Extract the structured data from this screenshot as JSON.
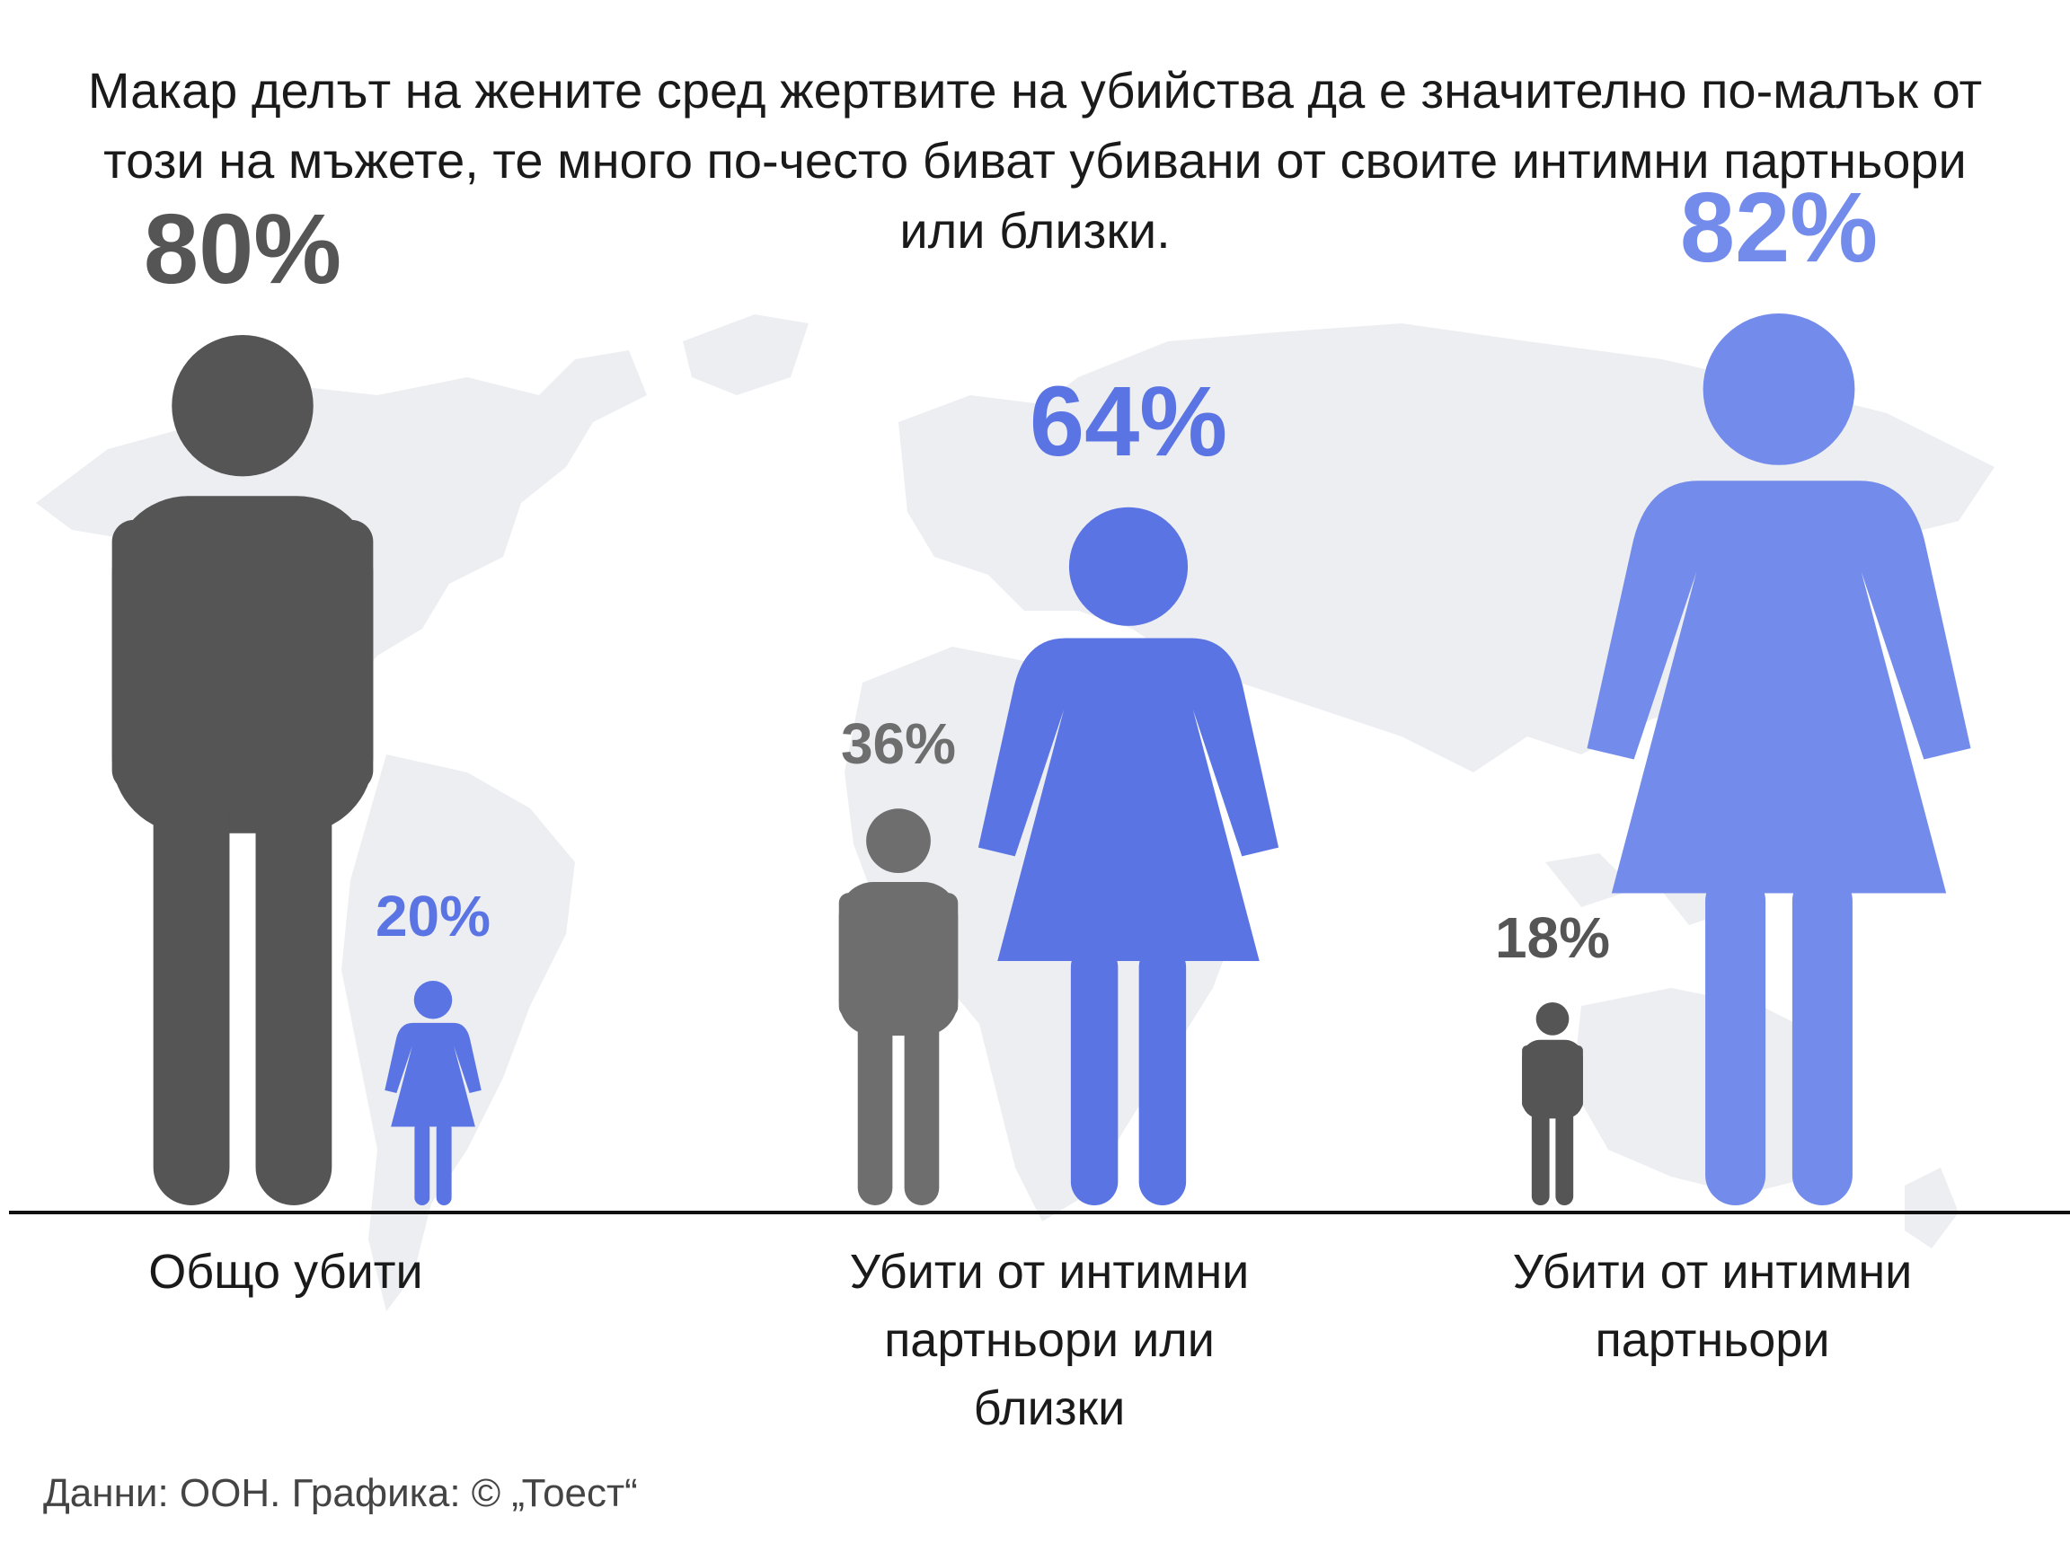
{
  "title": "Макар делът на жените сред жертвите на убийства да е значително по-малък от този на мъжете, те много по-често биват убивани от своите интимни партньори или близки.",
  "source": "Данни: ООН. Графика: © „Тоест“",
  "colors": {
    "men": "#555555",
    "men_light": "#6e6e6e",
    "women": "#5b74e4",
    "women_light": "#738bea",
    "map": "#eceef1",
    "baseline": "#111111"
  },
  "chart_data": {
    "type": "bar",
    "title": "Макар делът на жените сред жертвите на убийства да е значително по-малък от този на мъжете, те много по-често биват убивани от своите интимни партньори или близки.",
    "categories": [
      "Общо убити",
      "Убити от интимни партньори или близки",
      "Убити от интимни партньори"
    ],
    "series": [
      {
        "values": [
          80,
          36,
          18
        ],
        "labels": [
          "80%",
          "36%",
          "18%"
        ],
        "icon": "man-icon"
      },
      {
        "values": [
          20,
          64,
          82
        ],
        "labels": [
          "20%",
          "64%",
          "82%"
        ],
        "icon": "woman-icon"
      }
    ],
    "unit": "%"
  }
}
